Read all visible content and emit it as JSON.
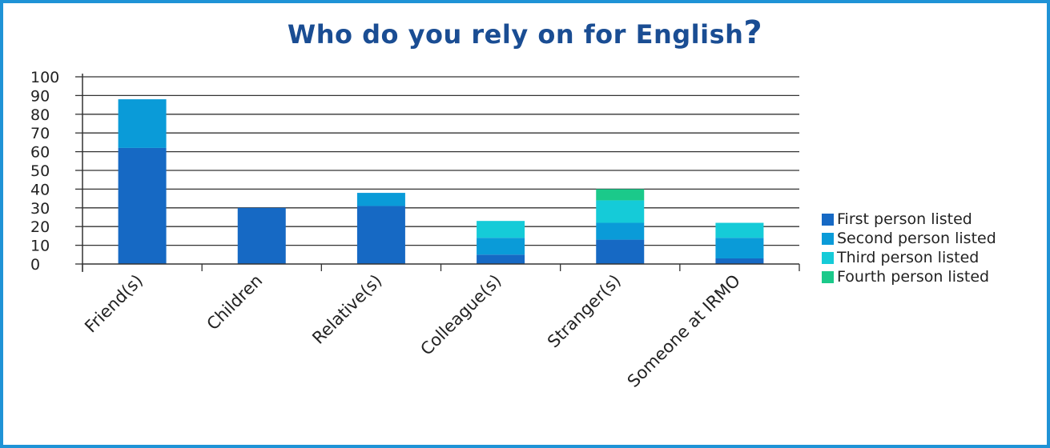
{
  "title": "Who do you rely on for English",
  "title_mark": "?",
  "colors": {
    "frame": "#1f93d6",
    "title": "#1a4d93",
    "series": [
      "#1669c4",
      "#0a9bd8",
      "#15cbd8",
      "#1bc98a"
    ]
  },
  "legend": [
    "First person listed",
    "Second person listed",
    "Third person listed",
    "Fourth person listed"
  ],
  "chart_data": {
    "type": "bar",
    "stacked": true,
    "title": "Who do you rely on for English?",
    "categories": [
      "Friend(s)",
      "Children",
      "Relative(s)",
      "Colleague(s)",
      "Stranger(s)",
      "Someone at IRMO"
    ],
    "series": [
      {
        "name": "First person listed",
        "values": [
          62,
          30,
          31,
          5,
          13,
          3
        ]
      },
      {
        "name": "Second person listed",
        "values": [
          26,
          0,
          7,
          9,
          9,
          11
        ]
      },
      {
        "name": "Third person listed",
        "values": [
          0,
          0,
          0,
          9,
          12,
          8
        ]
      },
      {
        "name": "Fourth person listed",
        "values": [
          0,
          0,
          0,
          0,
          6,
          0
        ]
      }
    ],
    "ylim": [
      0,
      100
    ],
    "yticks": [
      "0",
      "10",
      "20",
      "30",
      "40",
      "50",
      "60",
      "70",
      "80",
      "90",
      "100"
    ],
    "grid": true,
    "legend_position": "right"
  }
}
